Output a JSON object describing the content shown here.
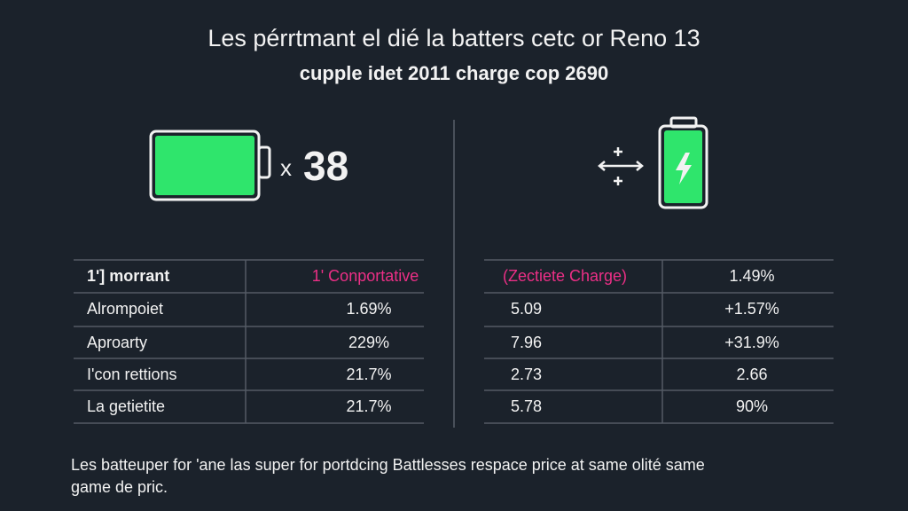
{
  "header": {
    "title": "Les pérrtmant el dié la batters cetc or Reno 13",
    "subtitle": "cupple idet 2011 charge cop 2690"
  },
  "battery_panel": {
    "multiplier": "x",
    "value": "38"
  },
  "left_table": {
    "header": [
      "1ʹ] morrant",
      "1ʹ Conportative"
    ],
    "rows": [
      [
        "Alrompoiet",
        "1.69%"
      ],
      [
        "Aproarty",
        "229%"
      ],
      [
        "I'con rettions",
        "21.7%"
      ],
      [
        "La getietite",
        "21.7%"
      ]
    ]
  },
  "right_table": {
    "header": [
      "(Zectiete Charge)",
      "1.49%"
    ],
    "rows": [
      [
        "5.09",
        "+1.57%"
      ],
      [
        "7.96",
        "+31.9%"
      ],
      [
        "2.73",
        "2.66"
      ],
      [
        "5.78",
        "90%"
      ]
    ]
  },
  "footer": {
    "text": "Les batteuper for 'ane las super for portdcing Battlesses respace price at same olité same game de pric."
  }
}
